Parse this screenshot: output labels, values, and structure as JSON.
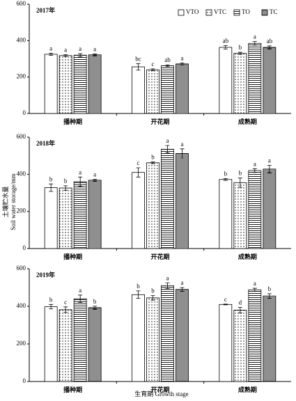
{
  "y_label": [
    "土壤贮水量",
    "Soil water storage/mm"
  ],
  "x_label": "生育期  Growth stage",
  "chart_data": [
    {
      "type": "bar",
      "title": "2017年",
      "categories": [
        "播种期",
        "开花期",
        "成熟期"
      ],
      "ylim": [
        0,
        600
      ],
      "yticks": [
        0,
        200,
        400,
        600
      ],
      "legend": "top-right",
      "series": [
        {
          "name": "VTO",
          "color": "#ffffff",
          "pattern": "none",
          "values": [
            325,
            256,
            363
          ],
          "errors": [
            6,
            18,
            10
          ],
          "significance": [
            "a",
            "bc",
            "ab"
          ]
        },
        {
          "name": "VTC",
          "color": "#ffffff",
          "pattern": "dots",
          "values": [
            318,
            240,
            330
          ],
          "errors": [
            5,
            5,
            6
          ],
          "significance": [
            "a",
            "c",
            "b"
          ]
        },
        {
          "name": "TO",
          "color": "#ffffff",
          "pattern": "lines",
          "values": [
            320,
            262,
            385
          ],
          "errors": [
            8,
            5,
            10
          ],
          "significance": [
            "a",
            "ab",
            "a"
          ]
        },
        {
          "name": "TC",
          "color": "#ffffff",
          "pattern": "dense-lines",
          "values": [
            322,
            272,
            363
          ],
          "errors": [
            5,
            6,
            8
          ],
          "significance": [
            "a",
            "a",
            "ab"
          ]
        }
      ]
    },
    {
      "type": "bar",
      "title": "2018年",
      "categories": [
        "播种期",
        "开花期",
        "成熟期"
      ],
      "ylim": [
        0,
        600
      ],
      "yticks": [
        0,
        200,
        400,
        600
      ],
      "legend": "none",
      "series": [
        {
          "name": "VTO",
          "color": "#ffffff",
          "pattern": "none",
          "values": [
            328,
            410,
            372
          ],
          "errors": [
            20,
            25,
            5
          ],
          "significance": [
            "b",
            "c",
            "b"
          ]
        },
        {
          "name": "VTC",
          "color": "#ffffff",
          "pattern": "dots",
          "values": [
            326,
            462,
            355
          ],
          "errors": [
            12,
            5,
            25
          ],
          "significance": [
            "b",
            "b",
            "b"
          ]
        },
        {
          "name": "TO",
          "color": "#ffffff",
          "pattern": "lines",
          "values": [
            360,
            535,
            420
          ],
          "errors": [
            25,
            20,
            10
          ],
          "significance": [
            "a",
            "a",
            "a"
          ]
        },
        {
          "name": "TC",
          "color": "#ffffff",
          "pattern": "dense-lines",
          "values": [
            368,
            512,
            428
          ],
          "errors": [
            5,
            25,
            20
          ],
          "significance": [
            "a",
            "a",
            "a"
          ]
        }
      ]
    },
    {
      "type": "bar",
      "title": "2019年",
      "categories": [
        "播种期",
        "开花期",
        "成熟期"
      ],
      "ylim": [
        0,
        600
      ],
      "yticks": [
        0,
        200,
        400,
        600
      ],
      "legend": "none",
      "series": [
        {
          "name": "VTO",
          "color": "#ffffff",
          "pattern": "none",
          "values": [
            398,
            462,
            410
          ],
          "errors": [
            12,
            20,
            2
          ],
          "significance": [
            "b",
            "b",
            "c"
          ]
        },
        {
          "name": "VTC",
          "color": "#ffffff",
          "pattern": "dots",
          "values": [
            382,
            445,
            380
          ],
          "errors": [
            15,
            12,
            15
          ],
          "significance": [
            "c",
            "b",
            "d"
          ]
        },
        {
          "name": "TO",
          "color": "#ffffff",
          "pattern": "lines",
          "values": [
            440,
            510,
            488
          ],
          "errors": [
            20,
            15,
            8
          ],
          "significance": [
            "a",
            "a",
            "a"
          ]
        },
        {
          "name": "TC",
          "color": "#ffffff",
          "pattern": "dense-lines",
          "values": [
            393,
            490,
            455
          ],
          "errors": [
            8,
            10,
            12
          ],
          "significance": [
            "b",
            "a",
            "b"
          ]
        }
      ]
    }
  ]
}
